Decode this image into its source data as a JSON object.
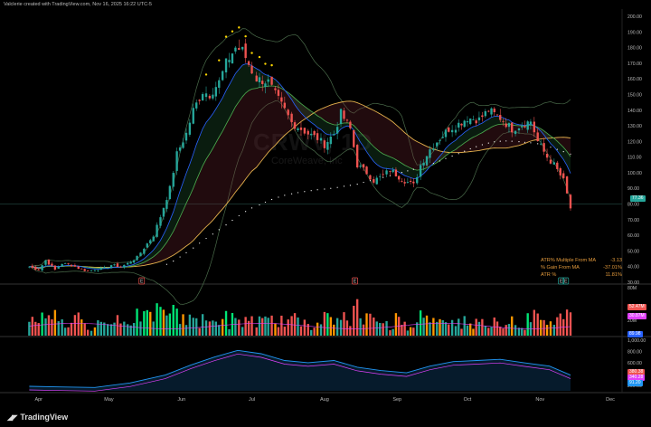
{
  "credit": "Valclerie created with TradingView.com, Nov 16, 2025 16:22 UTC-5",
  "watermark": {
    "symbol": "CRWV, 1D",
    "name": "CoreWeave, Inc"
  },
  "brand": {
    "name": "TradingView",
    "logo": "tv-logo-icon"
  },
  "price_tag": "77.36",
  "stats": [
    {
      "label": "ATR% Multiple From MA",
      "value": "-3.13"
    },
    {
      "label": "% Gain From MA",
      "value": "-37.01%"
    },
    {
      "label": "ATR %",
      "value": "11.81%"
    }
  ],
  "volume_tags": [
    "52.47M",
    "30.87M",
    "89.98"
  ],
  "rs_tags": [
    "380.38",
    "340.28",
    "91.20"
  ],
  "event_markers": [
    "E",
    "E",
    "E",
    "E"
  ],
  "colors": {
    "up": "#26a69a",
    "down": "#ef5350",
    "bright_up": "#00e676",
    "ema_fast": "#2962ff",
    "ema_slow": "#4caf50",
    "sma": "#e3b04c",
    "dots": "#ffffff",
    "bb": "#4a6b4a",
    "purple": "#e040fb",
    "rs_blue": "#2196f3"
  },
  "chart_data": {
    "type": "candlestick",
    "title": "",
    "x_ticks": [
      "Apr",
      "May",
      "Jun",
      "Jul",
      "Aug",
      "Sep",
      "Oct",
      "Nov",
      "Dec"
    ],
    "price_axis": {
      "ylim": [
        30,
        200
      ],
      "ticks": [
        "200.00",
        "190.00",
        "180.00",
        "170.00",
        "160.00",
        "150.00",
        "140.00",
        "130.00",
        "120.00",
        "110.00",
        "100.00",
        "90.00",
        "80.00",
        "70.00",
        "60.00",
        "50.00",
        "40.00",
        "30.00"
      ]
    },
    "volume_axis": {
      "ticks": [
        "80M",
        "40M",
        "20M"
      ]
    },
    "rs_axis": {
      "ticks": [
        "1,000.00",
        "800.00",
        "600.00",
        "400.00",
        "200.00"
      ]
    },
    "close_path": [
      [
        "2025-03-28",
        40
      ],
      [
        "2025-04-01",
        38
      ],
      [
        "2025-04-04",
        44
      ],
      [
        "2025-04-08",
        38
      ],
      [
        "2025-04-11",
        42
      ],
      [
        "2025-04-15",
        41
      ],
      [
        "2025-04-18",
        39
      ],
      [
        "2025-04-22",
        37
      ],
      [
        "2025-04-25",
        38
      ],
      [
        "2025-04-29",
        39
      ],
      [
        "2025-05-02",
        41
      ],
      [
        "2025-05-06",
        40
      ],
      [
        "2025-05-09",
        42
      ],
      [
        "2025-05-13",
        46
      ],
      [
        "2025-05-16",
        52
      ],
      [
        "2025-05-20",
        60
      ],
      [
        "2025-05-23",
        72
      ],
      [
        "2025-05-27",
        90
      ],
      [
        "2025-05-30",
        112
      ],
      [
        "2025-06-03",
        125
      ],
      [
        "2025-06-06",
        140
      ],
      [
        "2025-06-10",
        152
      ],
      [
        "2025-06-13",
        150
      ],
      [
        "2025-06-17",
        158
      ],
      [
        "2025-06-20",
        170
      ],
      [
        "2025-06-24",
        180
      ],
      [
        "2025-06-27",
        178
      ],
      [
        "2025-07-01",
        165
      ],
      [
        "2025-07-03",
        160
      ],
      [
        "2025-07-08",
        158
      ],
      [
        "2025-07-11",
        150
      ],
      [
        "2025-07-15",
        140
      ],
      [
        "2025-07-18",
        132
      ],
      [
        "2025-07-22",
        128
      ],
      [
        "2025-07-25",
        125
      ],
      [
        "2025-07-29",
        122
      ],
      [
        "2025-08-01",
        118
      ],
      [
        "2025-08-05",
        125
      ],
      [
        "2025-08-08",
        138
      ],
      [
        "2025-08-12",
        128
      ],
      [
        "2025-08-15",
        105
      ],
      [
        "2025-08-19",
        100
      ],
      [
        "2025-08-22",
        95
      ],
      [
        "2025-08-26",
        98
      ],
      [
        "2025-08-29",
        102
      ],
      [
        "2025-09-03",
        96
      ],
      [
        "2025-09-08",
        92
      ],
      [
        "2025-09-11",
        105
      ],
      [
        "2025-09-15",
        115
      ],
      [
        "2025-09-18",
        120
      ],
      [
        "2025-09-23",
        128
      ],
      [
        "2025-09-26",
        130
      ],
      [
        "2025-10-01",
        135
      ],
      [
        "2025-10-06",
        134
      ],
      [
        "2025-10-10",
        140
      ],
      [
        "2025-10-15",
        135
      ],
      [
        "2025-10-20",
        128
      ],
      [
        "2025-10-23",
        130
      ],
      [
        "2025-10-28",
        133
      ],
      [
        "2025-10-31",
        120
      ],
      [
        "2025-11-04",
        110
      ],
      [
        "2025-11-07",
        105
      ],
      [
        "2025-11-11",
        95
      ],
      [
        "2025-11-14",
        77.36
      ]
    ],
    "rs_path": [
      [
        "2025-03-28",
        180
      ],
      [
        "2025-04-10",
        170
      ],
      [
        "2025-04-25",
        160
      ],
      [
        "2025-05-10",
        240
      ],
      [
        "2025-05-25",
        380
      ],
      [
        "2025-06-05",
        560
      ],
      [
        "2025-06-15",
        700
      ],
      [
        "2025-06-25",
        820
      ],
      [
        "2025-07-05",
        760
      ],
      [
        "2025-07-15",
        640
      ],
      [
        "2025-07-25",
        600
      ],
      [
        "2025-08-05",
        640
      ],
      [
        "2025-08-15",
        520
      ],
      [
        "2025-08-25",
        460
      ],
      [
        "2025-09-05",
        420
      ],
      [
        "2025-09-15",
        540
      ],
      [
        "2025-09-25",
        620
      ],
      [
        "2025-10-05",
        640
      ],
      [
        "2025-10-15",
        660
      ],
      [
        "2025-10-25",
        600
      ],
      [
        "2025-11-05",
        540
      ],
      [
        "2025-11-14",
        380
      ]
    ]
  }
}
